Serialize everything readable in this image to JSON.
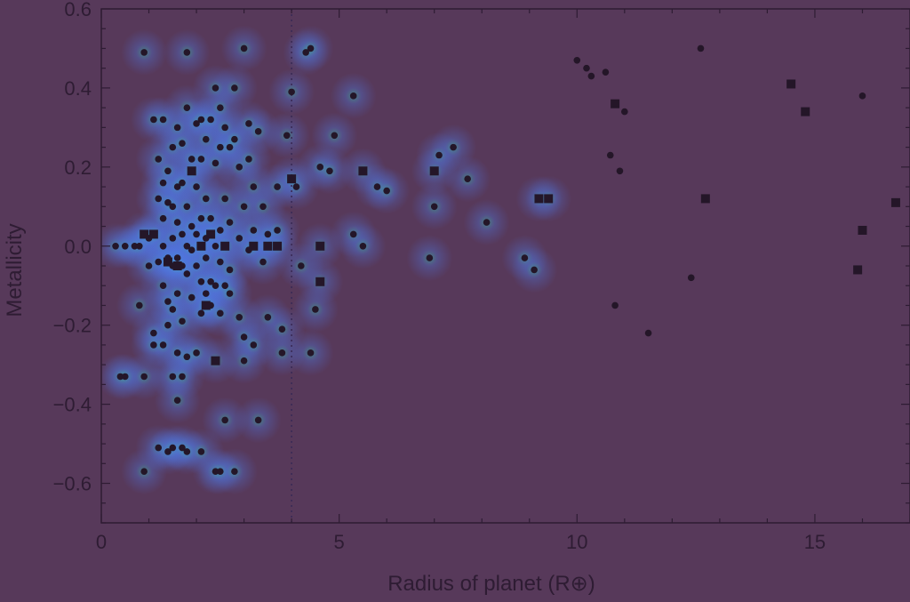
{
  "chart_data": {
    "type": "scatter",
    "title": "",
    "xlabel": "Radius of planet (R⊕)",
    "ylabel": "Metallicity",
    "xlim": [
      0,
      17
    ],
    "ylim": [
      -0.7,
      0.6
    ],
    "xticks": [
      {
        "value": 0,
        "label": "0"
      },
      {
        "value": 5,
        "label": "5"
      },
      {
        "value": 10,
        "label": "10"
      },
      {
        "value": 15,
        "label": "15"
      }
    ],
    "yticks": [
      {
        "value": 0.6,
        "label": "0.6"
      },
      {
        "value": 0.4,
        "label": "0.4"
      },
      {
        "value": 0.2,
        "label": "0.2"
      },
      {
        "value": 0.0,
        "label": "0.0"
      },
      {
        "value": -0.2,
        "label": "−0.2"
      },
      {
        "value": -0.4,
        "label": "−0.4"
      },
      {
        "value": -0.6,
        "label": "−0.6"
      }
    ],
    "reference_line_x": 4.0,
    "grid": false,
    "heatmap_overlay": true,
    "colors": {
      "background": "#57395a",
      "marker": "#241628",
      "density_low": "#4f6fe0",
      "density_high": "#37d6a0",
      "axis": "#2e1c33"
    },
    "series": [
      {
        "marker": "circle",
        "points": [
          [
            0.3,
            0.0
          ],
          [
            0.4,
            -0.33
          ],
          [
            0.5,
            -0.33
          ],
          [
            0.5,
            0.0
          ],
          [
            0.7,
            0.0
          ],
          [
            0.8,
            0.0
          ],
          [
            0.8,
            -0.15
          ],
          [
            0.9,
            -0.33
          ],
          [
            0.9,
            -0.57
          ],
          [
            0.9,
            0.49
          ],
          [
            1.0,
            0.02
          ],
          [
            1.0,
            -0.05
          ],
          [
            1.1,
            0.32
          ],
          [
            1.1,
            -0.22
          ],
          [
            1.1,
            -0.25
          ],
          [
            1.2,
            0.22
          ],
          [
            1.2,
            0.12
          ],
          [
            1.2,
            -0.04
          ],
          [
            1.2,
            -0.51
          ],
          [
            1.3,
            0.32
          ],
          [
            1.3,
            0.16
          ],
          [
            1.3,
            0.07
          ],
          [
            1.3,
            0.0
          ],
          [
            1.3,
            -0.1
          ],
          [
            1.3,
            -0.25
          ],
          [
            1.4,
            0.19
          ],
          [
            1.4,
            0.11
          ],
          [
            1.4,
            -0.03
          ],
          [
            1.4,
            -0.14
          ],
          [
            1.4,
            -0.2
          ],
          [
            1.4,
            -0.52
          ],
          [
            1.5,
            0.25
          ],
          [
            1.5,
            0.1
          ],
          [
            1.5,
            0.02
          ],
          [
            1.5,
            -0.05
          ],
          [
            1.5,
            -0.16
          ],
          [
            1.5,
            -0.33
          ],
          [
            1.5,
            -0.51
          ],
          [
            1.6,
            0.3
          ],
          [
            1.6,
            0.15
          ],
          [
            1.6,
            0.06
          ],
          [
            1.6,
            -0.03
          ],
          [
            1.6,
            -0.12
          ],
          [
            1.6,
            -0.27
          ],
          [
            1.6,
            -0.39
          ],
          [
            1.7,
            0.26
          ],
          [
            1.7,
            0.16
          ],
          [
            1.7,
            0.03
          ],
          [
            1.7,
            -0.05
          ],
          [
            1.7,
            -0.19
          ],
          [
            1.7,
            -0.33
          ],
          [
            1.7,
            -0.51
          ],
          [
            1.8,
            0.35
          ],
          [
            1.8,
            0.1
          ],
          [
            1.8,
            0.0
          ],
          [
            1.8,
            -0.07
          ],
          [
            1.8,
            -0.28
          ],
          [
            1.8,
            0.49
          ],
          [
            1.8,
            -0.52
          ],
          [
            1.9,
            0.22
          ],
          [
            1.9,
            0.05
          ],
          [
            1.9,
            -0.01
          ],
          [
            1.9,
            -0.13
          ],
          [
            2.0,
            0.31
          ],
          [
            2.0,
            0.15
          ],
          [
            2.0,
            0.03
          ],
          [
            2.0,
            -0.05
          ],
          [
            2.0,
            -0.27
          ],
          [
            2.1,
            0.32
          ],
          [
            2.1,
            0.22
          ],
          [
            2.1,
            0.07
          ],
          [
            2.1,
            -0.09
          ],
          [
            2.1,
            -0.17
          ],
          [
            2.1,
            -0.52
          ],
          [
            2.2,
            0.27
          ],
          [
            2.2,
            0.12
          ],
          [
            2.2,
            0.02
          ],
          [
            2.2,
            -0.03
          ],
          [
            2.2,
            -0.12
          ],
          [
            2.3,
            0.32
          ],
          [
            2.3,
            0.07
          ],
          [
            2.3,
            -0.09
          ],
          [
            2.3,
            -0.15
          ],
          [
            2.4,
            0.4
          ],
          [
            2.4,
            0.21
          ],
          [
            2.4,
            0.0
          ],
          [
            2.4,
            -0.1
          ],
          [
            2.4,
            -0.57
          ],
          [
            2.5,
            0.35
          ],
          [
            2.5,
            0.25
          ],
          [
            2.5,
            0.04
          ],
          [
            2.5,
            -0.04
          ],
          [
            2.5,
            -0.17
          ],
          [
            2.5,
            -0.57
          ],
          [
            2.6,
            0.3
          ],
          [
            2.6,
            0.12
          ],
          [
            2.6,
            -0.1
          ],
          [
            2.6,
            -0.44
          ],
          [
            2.7,
            0.25
          ],
          [
            2.7,
            0.06
          ],
          [
            2.7,
            -0.06
          ],
          [
            2.7,
            -0.12
          ],
          [
            2.8,
            0.4
          ],
          [
            2.8,
            0.27
          ],
          [
            2.8,
            -0.57
          ],
          [
            2.9,
            0.2
          ],
          [
            2.9,
            0.02
          ],
          [
            2.9,
            -0.18
          ],
          [
            3.0,
            0.5
          ],
          [
            3.0,
            0.1
          ],
          [
            3.0,
            -0.23
          ],
          [
            3.0,
            -0.29
          ],
          [
            3.1,
            0.31
          ],
          [
            3.1,
            0.22
          ],
          [
            3.1,
            -0.01
          ],
          [
            3.2,
            0.15
          ],
          [
            3.2,
            0.04
          ],
          [
            3.2,
            -0.25
          ],
          [
            3.3,
            0.29
          ],
          [
            3.3,
            -0.44
          ],
          [
            3.4,
            0.1
          ],
          [
            3.4,
            -0.04
          ],
          [
            3.5,
            0.03
          ],
          [
            3.5,
            -0.18
          ],
          [
            3.7,
            0.15
          ],
          [
            3.7,
            0.04
          ],
          [
            3.8,
            -0.21
          ],
          [
            3.8,
            -0.27
          ],
          [
            3.9,
            0.28
          ],
          [
            4.0,
            0.39
          ],
          [
            4.1,
            0.15
          ],
          [
            4.2,
            -0.05
          ],
          [
            4.3,
            0.49
          ],
          [
            4.4,
            0.5
          ],
          [
            4.4,
            -0.27
          ],
          [
            4.5,
            -0.16
          ],
          [
            4.6,
            0.2
          ],
          [
            4.8,
            0.19
          ],
          [
            4.9,
            0.28
          ],
          [
            5.3,
            0.38
          ],
          [
            5.3,
            0.03
          ],
          [
            5.5,
            0.0
          ],
          [
            5.8,
            0.15
          ],
          [
            6.0,
            0.14
          ],
          [
            6.9,
            -0.03
          ],
          [
            7.0,
            0.1
          ],
          [
            7.1,
            0.23
          ],
          [
            7.4,
            0.25
          ],
          [
            7.7,
            0.17
          ],
          [
            8.1,
            0.06
          ],
          [
            8.9,
            -0.03
          ],
          [
            9.1,
            -0.06
          ],
          [
            10.0,
            0.47
          ],
          [
            10.2,
            0.45
          ],
          [
            10.3,
            0.43
          ],
          [
            10.6,
            0.44
          ],
          [
            10.7,
            0.23
          ],
          [
            10.8,
            -0.15
          ],
          [
            10.9,
            0.19
          ],
          [
            11.0,
            0.34
          ],
          [
            11.5,
            -0.22
          ],
          [
            12.4,
            -0.08
          ],
          [
            12.6,
            0.5
          ],
          [
            16.0,
            0.38
          ]
        ]
      },
      {
        "marker": "square",
        "points": [
          [
            0.9,
            0.03
          ],
          [
            1.1,
            0.03
          ],
          [
            1.4,
            -0.04
          ],
          [
            1.6,
            -0.05
          ],
          [
            1.9,
            0.19
          ],
          [
            2.1,
            0.0
          ],
          [
            2.2,
            -0.15
          ],
          [
            2.3,
            0.03
          ],
          [
            2.4,
            -0.29
          ],
          [
            2.6,
            0.0
          ],
          [
            3.2,
            0.0
          ],
          [
            3.5,
            0.0
          ],
          [
            3.7,
            0.0
          ],
          [
            4.0,
            0.17
          ],
          [
            4.6,
            -0.09
          ],
          [
            4.6,
            0.0
          ],
          [
            5.5,
            0.19
          ],
          [
            7.0,
            0.19
          ],
          [
            9.2,
            0.12
          ],
          [
            9.4,
            0.12
          ],
          [
            10.8,
            0.36
          ],
          [
            12.7,
            0.12
          ],
          [
            14.5,
            0.41
          ],
          [
            14.8,
            0.34
          ],
          [
            15.9,
            -0.06
          ],
          [
            16.0,
            0.04
          ],
          [
            16.7,
            0.11
          ]
        ]
      }
    ]
  }
}
